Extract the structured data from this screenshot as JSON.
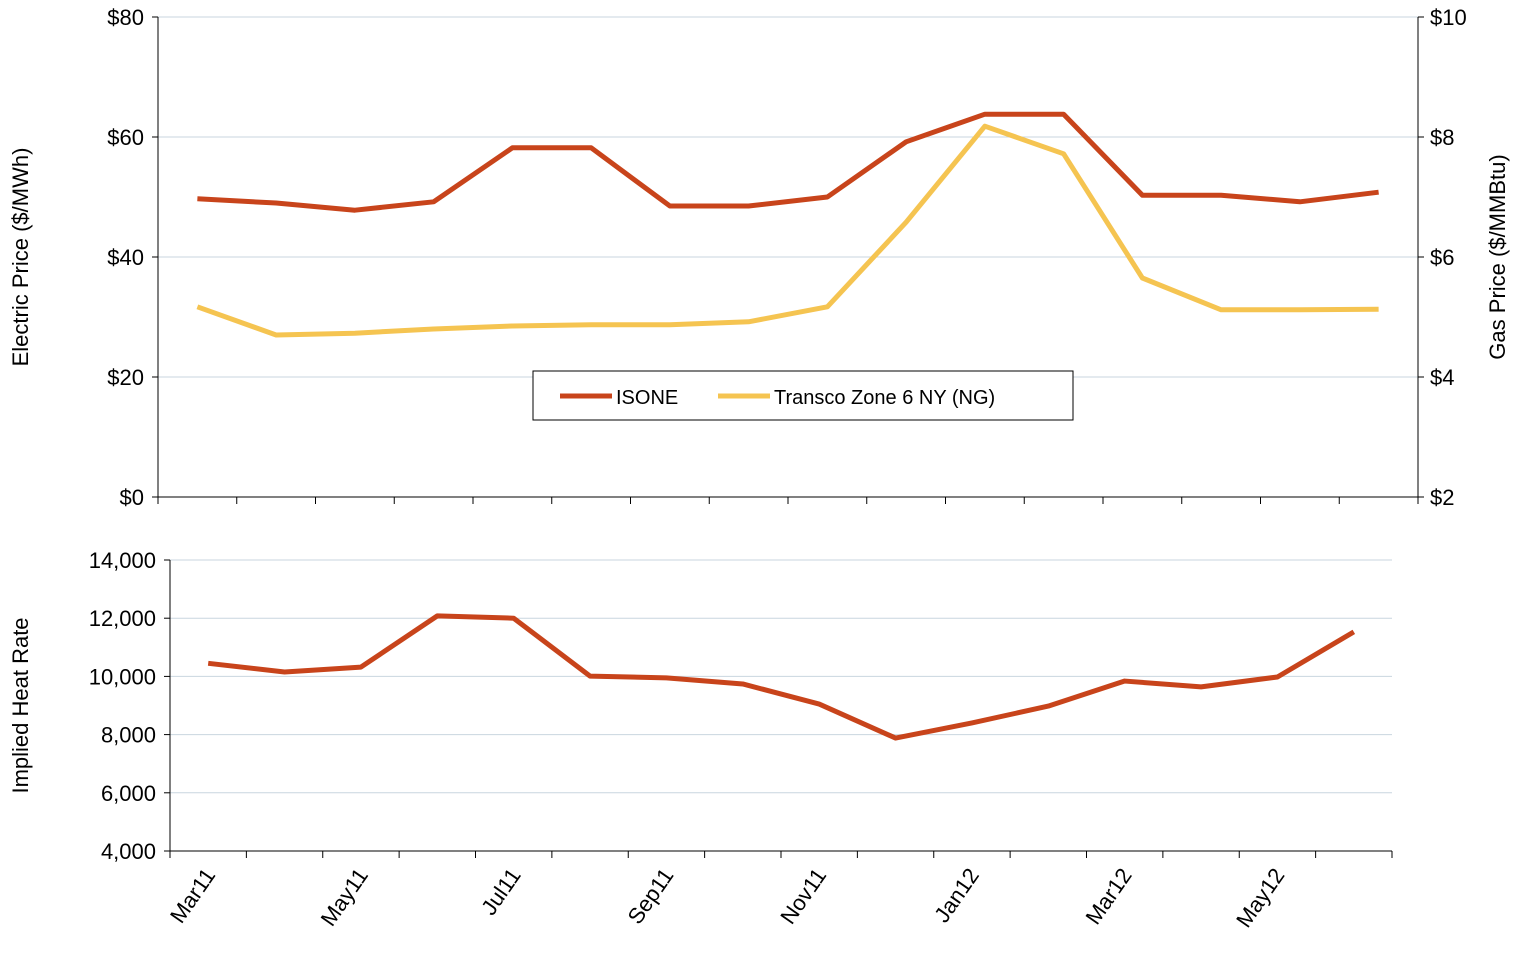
{
  "chart_data": [
    {
      "type": "line",
      "y_label": "Electric Price ($/MWh)",
      "y2_label": "Gas Price ($/MMBtu)",
      "categories": [
        null,
        null,
        null,
        null,
        null,
        null,
        null,
        null,
        null,
        null,
        null,
        null,
        null,
        null,
        null,
        null
      ],
      "series": [
        {
          "name": "ISONE",
          "color": "#c8441b",
          "values": [
            49.7,
            49,
            47.8,
            49.2,
            58.2,
            58.2,
            48.5,
            48.5,
            50,
            59.2,
            63.8,
            63.8,
            50.3,
            50.3,
            49.2,
            50.8
          ]
        },
        {
          "name": "Transco Zone 6 NY (NG)",
          "color": "#f5c451",
          "axis": "y2",
          "values": [
            5.17,
            4.7,
            4.73,
            4.8,
            4.85,
            4.87,
            4.87,
            4.92,
            5.17,
            6.58,
            8.18,
            7.72,
            5.65,
            5.12,
            5.12,
            5.13
          ]
        }
      ],
      "ylim": [
        0,
        80
      ],
      "yticks": [
        {
          "value": 0,
          "label": "$0"
        },
        {
          "value": 20,
          "label": "$20"
        },
        {
          "value": 40,
          "label": "$40"
        },
        {
          "value": 60,
          "label": "$60"
        },
        {
          "value": 80,
          "label": "$80"
        }
      ],
      "y2lim": [
        2,
        10
      ],
      "y2ticks": [
        {
          "value": 2,
          "label": "$2"
        },
        {
          "value": 4,
          "label": "$4"
        },
        {
          "value": 6,
          "label": "$6"
        },
        {
          "value": 8,
          "label": "$8"
        },
        {
          "value": 10,
          "label": "$10"
        }
      ],
      "grid": true,
      "legend": "center"
    },
    {
      "type": "line",
      "y_label": "Implied Heat Rate",
      "categories": [
        "Mar11",
        null,
        "May11",
        null,
        "Jul11",
        null,
        "Sep11",
        null,
        "Nov11",
        null,
        "Jan12",
        null,
        "Mar12",
        null,
        "May12",
        null
      ],
      "values": [
        10450,
        10150,
        10320,
        12080,
        12000,
        10010,
        9950,
        9740,
        9050,
        7880,
        8400,
        8980,
        9840,
        9640,
        9980,
        11530
      ],
      "color": "#c8441b",
      "ylim": [
        4000,
        14000
      ],
      "yticks": [
        {
          "value": 4000,
          "label": "4,000"
        },
        {
          "value": 6000,
          "label": "6,000"
        },
        {
          "value": 8000,
          "label": "8,000"
        },
        {
          "value": 10000,
          "label": "10,000"
        },
        {
          "value": 12000,
          "label": "12,000"
        },
        {
          "value": 14000,
          "label": "14,000"
        }
      ],
      "grid": true
    }
  ]
}
